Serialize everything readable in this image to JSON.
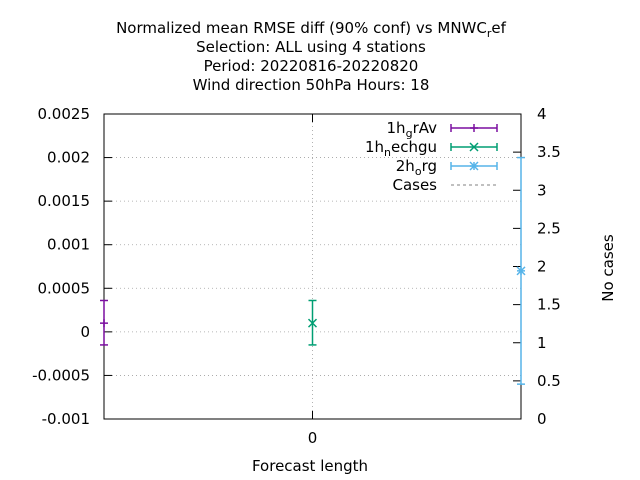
{
  "chart_data": {
    "type": "errorbar",
    "title": [
      "Normalized mean RMSE diff (90% conf) vs MNWC_ref",
      "Selection: ALL using     4 stations",
      "Period: 20220816-20220820",
      "Wind direction 50hPa   Hours:  18"
    ],
    "title_sub": {
      "base": "Normalized mean RMSE diff (90% conf) vs MNWC",
      "sub": "r",
      "rest": "ef"
    },
    "xlabel": "Forecast length",
    "ylabel": "",
    "y2label": "No cases",
    "xlim": [
      -0.2,
      0.2
    ],
    "ylim": [
      -0.001,
      0.0025
    ],
    "y2lim": [
      0,
      4
    ],
    "x_ticks": [
      0
    ],
    "y_ticks": [
      "-0.001",
      "-0.0005",
      "0",
      "0.0005",
      "0.001",
      "0.0015",
      "0.002",
      "0.0025"
    ],
    "y2_ticks": [
      "0",
      "0.5",
      "1",
      "1.5",
      "2",
      "2.5",
      "3",
      "3.5",
      "4"
    ],
    "grid": true,
    "legend_position": "top-right",
    "series": [
      {
        "name": "1h_grAv",
        "label_base": "1h",
        "label_sub": "g",
        "label_rest": "rAv",
        "color": "#7b0fa0",
        "marker": "plus",
        "x": -0.2,
        "y": 0.0001,
        "ylow": -0.00015,
        "yhigh": 0.00036
      },
      {
        "name": "1h_nechgu",
        "label_base": "1h",
        "label_sub": "n",
        "label_rest": "echgu",
        "color": "#009e73",
        "marker": "cross",
        "x": 0.0,
        "y": 0.0001,
        "ylow": -0.00015,
        "yhigh": 0.00036
      },
      {
        "name": "2h_org",
        "label_base": "2h",
        "label_sub": "o",
        "label_rest": "rg",
        "color": "#56b4e9",
        "marker": "asterisk",
        "x": 0.2,
        "y": 0.0007,
        "ylow": -0.0006,
        "yhigh": 0.002
      }
    ],
    "cases": {
      "name": "Cases",
      "color": "#808080"
    }
  }
}
